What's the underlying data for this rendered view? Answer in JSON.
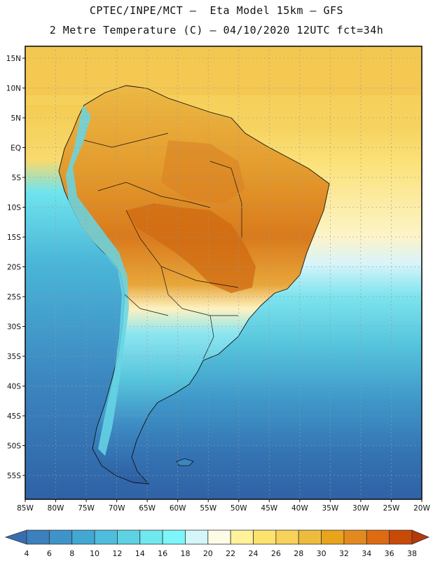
{
  "title_line1": "CPTEC/INPE/MCT –  Eta Model 15km – GFS",
  "title_line2": "2 Metre Temperature (C) – 04/10/2020 12UTC fct=34h",
  "map": {
    "lon_range": [
      -85,
      -20
    ],
    "lat_range": [
      17,
      -59
    ],
    "lon_ticks": [
      "85W",
      "80W",
      "75W",
      "70W",
      "65W",
      "60W",
      "55W",
      "50W",
      "45W",
      "40W",
      "35W",
      "30W",
      "25W",
      "20W"
    ],
    "lat_ticks": [
      "15N",
      "10N",
      "5N",
      "EQ",
      "5S",
      "10S",
      "15S",
      "20S",
      "25S",
      "30S",
      "35S",
      "40S",
      "45S",
      "50S",
      "55S"
    ]
  },
  "colorbar": {
    "levels": [
      "4",
      "6",
      "8",
      "10",
      "12",
      "14",
      "16",
      "18",
      "20",
      "22",
      "24",
      "26",
      "28",
      "30",
      "32",
      "34",
      "36",
      "38"
    ],
    "colors": [
      "#3a6db0",
      "#3c80bd",
      "#3e93c8",
      "#42a8d3",
      "#4fbddc",
      "#5dd2e2",
      "#6fe8ef",
      "#7cf6fa",
      "#d4f6fb",
      "#fdfbe6",
      "#fff29a",
      "#fde36e",
      "#f7d15a",
      "#eebc3d",
      "#e8a41a",
      "#e38a1e",
      "#dc6b12",
      "#c84a08",
      "#b5380a"
    ]
  }
}
